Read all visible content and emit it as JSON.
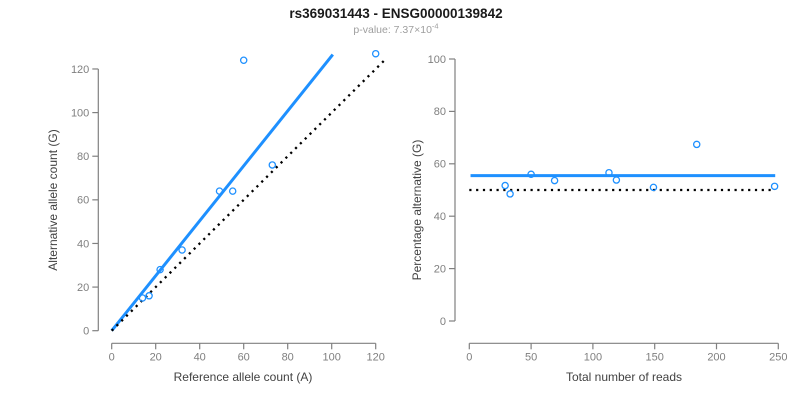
{
  "title": "rs369031443 - ENSG00000139842",
  "subtitle": {
    "label": "p-value: 7.37×10",
    "exponent": "-4"
  },
  "colors": {
    "fit_blue": "#1E90FF",
    "identity_black": "#000000",
    "axis_gray": "#808080",
    "tick_label_gray": "#7F7F7F",
    "axis_title_gray": "#424242",
    "subtitle_gray": "#9E9E9E",
    "title_black": "#1A1A1A",
    "background": "#FFFFFF"
  },
  "chart_data": [
    {
      "id": "allele-counts",
      "type": "scatter",
      "xlabel": "Reference allele count (A)",
      "ylabel": "Alternative allele count (G)",
      "xticks": [
        0,
        20,
        40,
        60,
        80,
        100,
        120
      ],
      "yticks": [
        0,
        20,
        40,
        60,
        80,
        100,
        120
      ],
      "xlim": [
        0,
        126
      ],
      "ylim": [
        0,
        128
      ],
      "grid": false,
      "legend": "none",
      "points": [
        [
          14,
          15
        ],
        [
          17,
          16
        ],
        [
          22,
          28
        ],
        [
          32,
          37
        ],
        [
          49,
          64
        ],
        [
          55,
          64
        ],
        [
          60,
          124
        ],
        [
          73,
          76
        ],
        [
          120,
          127
        ]
      ],
      "lines": [
        {
          "name": "fit-line",
          "role": "regression-fit",
          "x1": 0,
          "y1": 0,
          "x2": 100.5,
          "y2": 126.6,
          "style": "solid",
          "color": "fit_blue",
          "width": 3
        },
        {
          "name": "identity-line",
          "role": "y-equals-x",
          "x1": 0,
          "y1": 0,
          "x2": 124.8,
          "y2": 124.8,
          "style": "dotted",
          "color": "identity_black",
          "width": 2.3
        }
      ]
    },
    {
      "id": "percentage-vs-reads",
      "type": "scatter",
      "xlabel": "Total number of reads",
      "ylabel": "Percentage alternative (G)",
      "xticks": [
        0,
        50,
        100,
        150,
        200,
        250
      ],
      "yticks": [
        0,
        20,
        40,
        60,
        80,
        100
      ],
      "xlim": [
        0,
        250
      ],
      "ylim": [
        0,
        100
      ],
      "grid": false,
      "legend": "none",
      "points": [
        [
          29,
          51.7
        ],
        [
          33,
          48.5
        ],
        [
          50,
          56.0
        ],
        [
          69,
          53.6
        ],
        [
          113,
          56.6
        ],
        [
          119,
          53.8
        ],
        [
          149,
          51.0
        ],
        [
          184,
          67.4
        ],
        [
          247,
          51.4
        ]
      ],
      "lines": [
        {
          "name": "fit-line",
          "role": "fitted-percentage",
          "x1": 1,
          "y1": 55.5,
          "x2": 247.5,
          "y2": 55.5,
          "style": "solid",
          "color": "fit_blue",
          "width": 3
        },
        {
          "name": "null-line",
          "role": "fifty-percent-reference",
          "x1": 0,
          "y1": 50,
          "x2": 245,
          "y2": 50,
          "style": "dotted",
          "color": "identity_black",
          "width": 2.3
        }
      ]
    }
  ]
}
